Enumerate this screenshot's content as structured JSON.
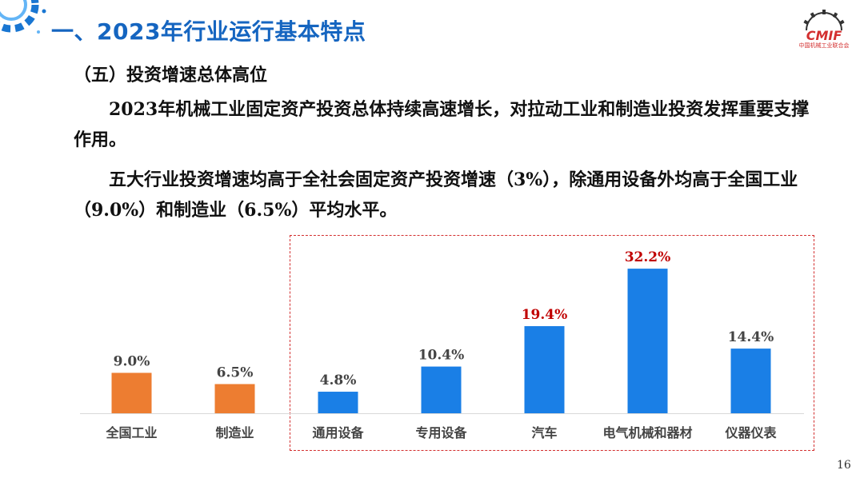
{
  "header": {
    "title": "一、2023年行业运行基本特点",
    "logo_text": "CMIF",
    "logo_subtext": "中国机械工业联合会"
  },
  "section": {
    "subtitle": "（五）投资增速总体高位",
    "paragraph1": "2023年机械工业固定资产投资总体持续高速增长，对拉动工业和制造业投资发挥重要支撑作用。",
    "paragraph2": "五大行业投资增速均高于全社会固定资产投资增速（3%），除通用设备外均高于全国工业（9.0%）和制造业（6.5%）平均水平。"
  },
  "colors": {
    "title_blue": "#1565c0",
    "bar_orange": "#ed7d31",
    "bar_blue": "#1a7fe6",
    "highlight_red": "#c00000",
    "label_gray": "#444444",
    "dashed_border": "#d32f2f"
  },
  "chart_data": {
    "type": "bar",
    "categories": [
      "全国工业",
      "制造业",
      "通用设备",
      "专用设备",
      "汽车",
      "电气机械和器材",
      "仪器仪表"
    ],
    "values": [
      9.0,
      6.5,
      4.8,
      10.4,
      19.4,
      32.2,
      14.4
    ],
    "labels": [
      "9.0%",
      "6.5%",
      "4.8%",
      "10.4%",
      "19.4%",
      "32.2%",
      "14.4%"
    ],
    "bar_colors": [
      "orange",
      "orange",
      "blue",
      "blue",
      "blue",
      "blue",
      "blue"
    ],
    "label_colors": [
      "gray",
      "gray",
      "gray",
      "gray",
      "red",
      "red",
      "gray"
    ],
    "unit": "%",
    "ylim": [
      0,
      34
    ],
    "grid": false,
    "legend": "none"
  },
  "page_number": "16"
}
